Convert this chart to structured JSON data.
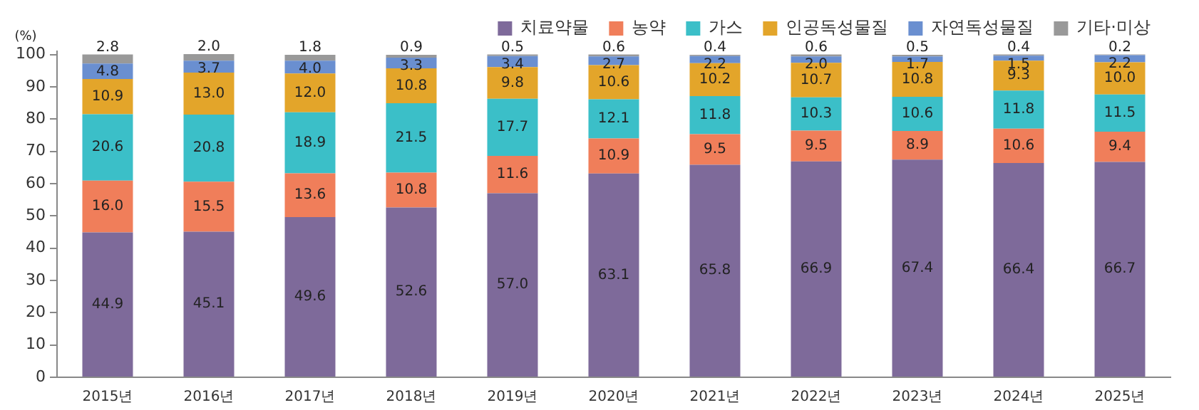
{
  "chart_data": {
    "type": "bar",
    "stacked": true,
    "ylabel": "(%)",
    "categories": [
      "2015년",
      "2016년",
      "2017년",
      "2018년",
      "2019년",
      "2020년",
      "2021년",
      "2022년",
      "2023년",
      "2024년",
      "2025년"
    ],
    "series": [
      {
        "name": "치료약물",
        "color": "#7e6a9a",
        "values": [
          44.9,
          45.1,
          49.6,
          52.6,
          57.0,
          63.1,
          65.8,
          66.9,
          67.4,
          66.4,
          66.7
        ],
        "value_labels": [
          "44.9",
          "45.1",
          "49.6",
          "52.6",
          "57.0",
          "63.1",
          "65.8",
          "66.9",
          "67.4",
          "66.4",
          "66.7"
        ]
      },
      {
        "name": "농약",
        "color": "#f07e5a",
        "values": [
          16.0,
          15.5,
          13.6,
          10.8,
          11.6,
          10.9,
          9.5,
          9.5,
          8.9,
          10.6,
          9.4
        ],
        "value_labels": [
          "16.0",
          "15.5",
          "13.6",
          "10.8",
          "11.6",
          "10.9",
          "9.5",
          "9.5",
          "8.9",
          "10.6",
          "9.4"
        ]
      },
      {
        "name": "가스",
        "color": "#3bbfc8",
        "values": [
          20.6,
          20.8,
          18.9,
          21.5,
          17.7,
          12.1,
          11.8,
          10.3,
          10.6,
          11.8,
          11.5
        ],
        "value_labels": [
          "20.6",
          "20.8",
          "18.9",
          "21.5",
          "17.7",
          "12.1",
          "11.8",
          "10.3",
          "10.6",
          "11.8",
          "11.5"
        ]
      },
      {
        "name": "인공독성물질",
        "color": "#e3a52a",
        "values": [
          10.9,
          13.0,
          12.0,
          10.8,
          9.8,
          10.6,
          10.2,
          10.7,
          10.8,
          9.3,
          10.0
        ],
        "value_labels": [
          "10.9",
          "13.0",
          "12.0",
          "10.8",
          "9.8",
          "10.6",
          "10.2",
          "10.7",
          "10.8",
          "9.3",
          "10.0"
        ]
      },
      {
        "name": "자연독성물질",
        "color": "#6a8fd0",
        "values": [
          4.8,
          3.7,
          4.0,
          3.3,
          3.4,
          2.7,
          2.2,
          2.0,
          1.7,
          1.5,
          2.2
        ],
        "value_labels": [
          "4.8",
          "3.7",
          "4.0",
          "3.3",
          "3.4",
          "2.7",
          "2.2",
          "2.0",
          "1.7",
          "1.5",
          "2.2"
        ]
      },
      {
        "name": "기타·미상",
        "color": "#999999",
        "values": [
          2.8,
          2.0,
          1.8,
          0.9,
          0.5,
          0.6,
          0.4,
          0.6,
          0.5,
          0.4,
          0.2
        ],
        "value_labels": [
          "2.8",
          "2.0",
          "1.8",
          "0.9",
          "0.5",
          "0.6",
          "0.4",
          "0.6",
          "0.5",
          "0.4",
          "0.2"
        ]
      }
    ],
    "ylim": [
      0,
      101
    ],
    "yticks": [
      0,
      10,
      20,
      30,
      40,
      50,
      60,
      70,
      80,
      90,
      100
    ],
    "grid": false,
    "legend": "top right"
  }
}
